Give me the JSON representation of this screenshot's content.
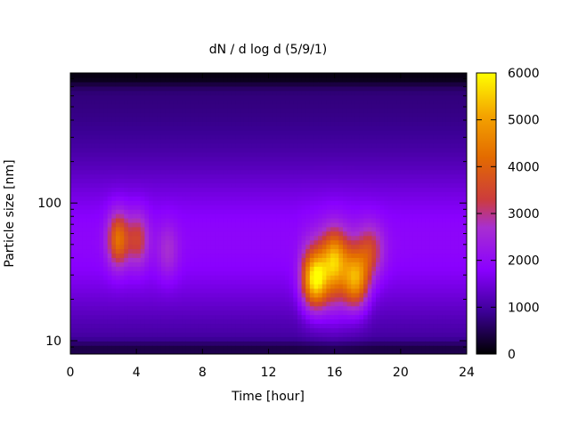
{
  "chart_data": {
    "type": "heatmap",
    "title": "dN / d log d (5/9/1)",
    "xlabel": "Time [hour]",
    "ylabel": "Particle size [nm]",
    "xlim": [
      0,
      24
    ],
    "ylim_nm": [
      8,
      880
    ],
    "y_scale": "log",
    "x_ticks": [
      "0",
      "4",
      "8",
      "12",
      "16",
      "20",
      "24"
    ],
    "x_tick_values": [
      0,
      4,
      8,
      12,
      16,
      20,
      24
    ],
    "y_ticks": [
      "10",
      "100"
    ],
    "y_tick_values": [
      10,
      100
    ],
    "colorbar": {
      "min": 0,
      "max": 6000,
      "ticks": [
        "0",
        "1000",
        "2000",
        "3000",
        "4000",
        "5000",
        "6000"
      ],
      "tick_values": [
        0,
        1000,
        2000,
        3000,
        4000,
        5000,
        6000
      ],
      "colormap": [
        "#000000",
        "#3c0096",
        "#8a00ff",
        "#a82fd0",
        "#cc3c3c",
        "#e36b00",
        "#f4a400",
        "#ffff00"
      ]
    },
    "features": [
      {
        "time_hour": 2.9,
        "size_nm": 55,
        "value": 3900
      },
      {
        "time_hour": 4.1,
        "size_nm": 55,
        "value": 3000
      },
      {
        "time_hour": 5.9,
        "size_nm": 45,
        "value": 2300
      },
      {
        "time_hour": 14.8,
        "size_nm": 28,
        "value": 5000
      },
      {
        "time_hour": 16.0,
        "size_nm": 40,
        "value": 3500
      },
      {
        "time_hour": 17.3,
        "size_nm": 28,
        "value": 4100
      },
      {
        "time_hour": 18.2,
        "size_nm": 45,
        "value": 3000
      }
    ]
  }
}
